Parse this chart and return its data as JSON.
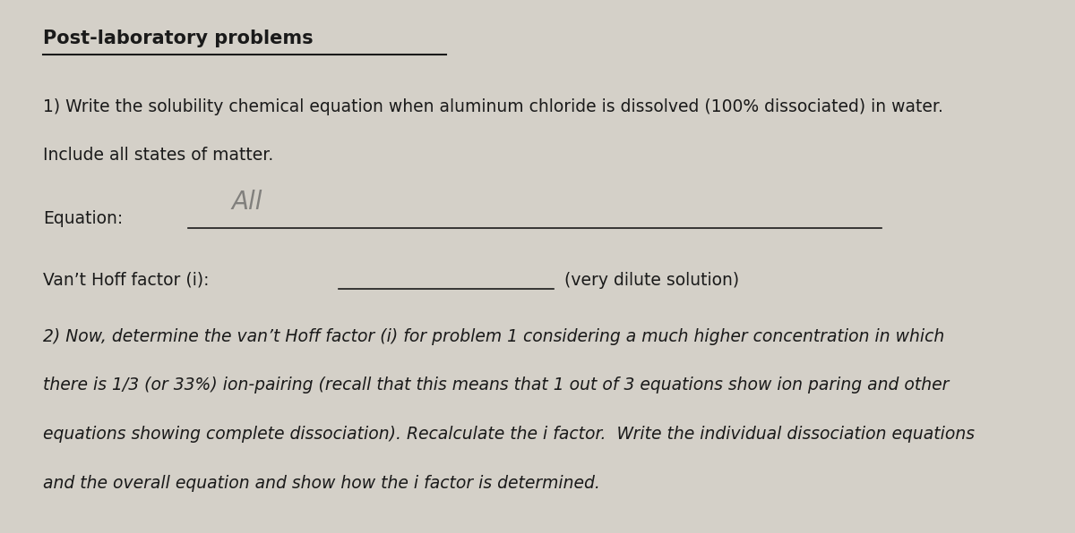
{
  "title": "Post-laboratory problems",
  "bg_color": "#d4d0c8",
  "text_color": "#1a1a1a",
  "line1_q": "1) Write the solubility chemical equation when aluminum chloride is dissolved (100% dissociated) in water.",
  "line1_q2": "Include all states of matter.",
  "equation_label": "Equation:",
  "vanthoff_label": "Van’t Hoff factor (i):",
  "vanthoff_suffix": "(very dilute solution)",
  "line2_q": "2) Now, determine the van’t Hoff factor (i) for problem 1 considering a much higher concentration in which",
  "line2_q2": "there is 1/3 (or 33%) ion-pairing (recall that this means that 1 out of 3 equations show ion paring and other",
  "line2_q3": "equations showing complete dissociation). Recalculate the i factor.  Write the individual dissociation equations",
  "line2_q4": "and the overall equation and show how the i factor is determined.",
  "handwriting": "All",
  "font_size_title": 15,
  "font_size_body": 13.5,
  "font_size_hand": 20
}
